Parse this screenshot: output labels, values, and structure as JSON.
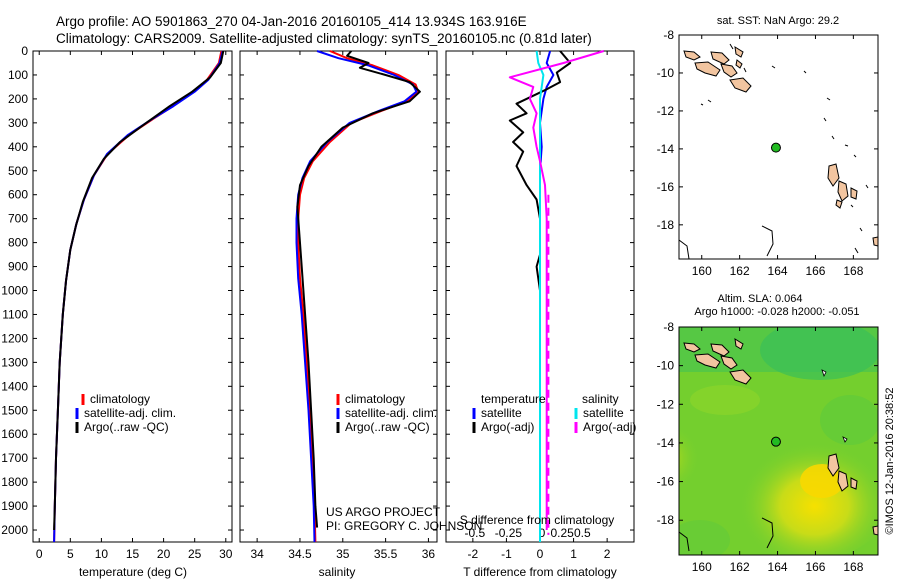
{
  "header": {
    "line1": "Argo profile: AO 5901863_270 04-Jan-2016 20160105_414 13.934S 163.916E",
    "line2": "Climatology: CARS2009. Satellite-adjusted climatology: synTS_20160105.nc (0.81d later)"
  },
  "colors": {
    "climatology": "#ff0000",
    "satellite": "#0000ff",
    "argo": "#000000",
    "sal_satellite": "#00e5ee",
    "sal_argo": "#ff00ff",
    "land": "#f2c5a0",
    "marker": "#22bb22"
  },
  "credit": "©IMOS 12-Jan-2016 20:38:52",
  "project_note": {
    "line1": "US ARGO PROJECT",
    "line2": "PI: GREGORY C. JOHNSON"
  },
  "chart_data": [
    {
      "id": "temp",
      "type": "line",
      "xlabel": "temperature (deg C)",
      "xlim": [
        -1,
        31
      ],
      "xticks": [
        0,
        5,
        10,
        15,
        20,
        25,
        30
      ],
      "ylim": [
        2050,
        0
      ],
      "yticks": [
        0,
        100,
        200,
        300,
        400,
        500,
        600,
        700,
        800,
        900,
        1000,
        1100,
        1200,
        1300,
        1400,
        1500,
        1600,
        1700,
        1800,
        1900,
        2000
      ],
      "legend": [
        "climatology",
        "satellite-adj. clim.",
        "Argo(..raw -QC)"
      ],
      "series": [
        {
          "name": "climatology",
          "color": "#ff0000",
          "points": [
            [
              29.3,
              0
            ],
            [
              28.9,
              50
            ],
            [
              27.0,
              120
            ],
            [
              24.8,
              170
            ],
            [
              21.5,
              230
            ],
            [
              18.5,
              280
            ],
            [
              14.5,
              350
            ],
            [
              11.0,
              430
            ],
            [
              8.8,
              520
            ],
            [
              7.2,
              620
            ],
            [
              6.0,
              720
            ],
            [
              5.0,
              830
            ],
            [
              4.3,
              960
            ],
            [
              3.8,
              1100
            ],
            [
              3.3,
              1300
            ],
            [
              3.0,
              1500
            ],
            [
              2.7,
              1700
            ],
            [
              2.5,
              1900
            ],
            [
              2.4,
              2050
            ]
          ]
        },
        {
          "name": "satellite-adj. clim.",
          "color": "#0000ff",
          "points": [
            [
              29.5,
              0
            ],
            [
              29.0,
              50
            ],
            [
              27.2,
              120
            ],
            [
              25.0,
              170
            ],
            [
              21.6,
              230
            ],
            [
              18.4,
              280
            ],
            [
              14.3,
              350
            ],
            [
              10.9,
              430
            ],
            [
              8.8,
              520
            ],
            [
              7.2,
              620
            ],
            [
              6.0,
              720
            ],
            [
              5.0,
              830
            ],
            [
              4.3,
              960
            ],
            [
              3.8,
              1100
            ],
            [
              3.3,
              1300
            ],
            [
              3.0,
              1500
            ],
            [
              2.7,
              1700
            ],
            [
              2.5,
              1900
            ],
            [
              2.4,
              2050
            ]
          ]
        },
        {
          "name": "Argo(..raw -QC)",
          "color": "#000000",
          "points": [
            [
              29.6,
              0
            ],
            [
              29.2,
              50
            ],
            [
              27.5,
              110
            ],
            [
              24.6,
              170
            ],
            [
              21.0,
              230
            ],
            [
              17.2,
              300
            ],
            [
              13.0,
              380
            ],
            [
              10.4,
              450
            ],
            [
              8.5,
              530
            ],
            [
              7.0,
              630
            ],
            [
              5.9,
              730
            ],
            [
              5.0,
              830
            ],
            [
              4.3,
              960
            ],
            [
              3.8,
              1100
            ],
            [
              3.3,
              1300
            ],
            [
              3.0,
              1500
            ],
            [
              2.7,
              1700
            ],
            [
              2.5,
              1900
            ],
            [
              2.4,
              2000
            ]
          ]
        }
      ]
    },
    {
      "id": "sal",
      "type": "line",
      "xlabel": "salinity",
      "xlim": [
        33.8,
        36.1
      ],
      "xticks": [
        34,
        34.5,
        35,
        35.5,
        36
      ],
      "xtick_labels": [
        "34",
        "34.5",
        "35",
        "35.5",
        "36"
      ],
      "ylim": [
        2050,
        0
      ],
      "legend": [
        "climatology",
        "satellite-adj. clim.",
        "Argo(..raw -QC)"
      ],
      "series": [
        {
          "name": "climatology",
          "color": "#ff0000",
          "points": [
            [
              34.85,
              0
            ],
            [
              35.05,
              30
            ],
            [
              35.35,
              60
            ],
            [
              35.65,
              100
            ],
            [
              35.85,
              140
            ],
            [
              35.88,
              170
            ],
            [
              35.75,
              210
            ],
            [
              35.45,
              250
            ],
            [
              35.1,
              300
            ],
            [
              34.85,
              380
            ],
            [
              34.65,
              460
            ],
            [
              34.55,
              530
            ],
            [
              34.5,
              600
            ],
            [
              34.48,
              700
            ],
            [
              34.48,
              800
            ],
            [
              34.5,
              950
            ],
            [
              34.54,
              1100
            ],
            [
              34.58,
              1300
            ],
            [
              34.62,
              1500
            ],
            [
              34.65,
              1700
            ],
            [
              34.67,
              1900
            ],
            [
              34.68,
              2050
            ]
          ]
        },
        {
          "name": "satellite-adj. clim.",
          "color": "#0000ff",
          "points": [
            [
              34.7,
              0
            ],
            [
              34.95,
              30
            ],
            [
              35.3,
              60
            ],
            [
              35.6,
              100
            ],
            [
              35.82,
              140
            ],
            [
              35.86,
              170
            ],
            [
              35.72,
              210
            ],
            [
              35.42,
              250
            ],
            [
              35.08,
              300
            ],
            [
              34.82,
              380
            ],
            [
              34.62,
              460
            ],
            [
              34.53,
              530
            ],
            [
              34.48,
              600
            ],
            [
              34.46,
              700
            ],
            [
              34.46,
              800
            ],
            [
              34.48,
              950
            ],
            [
              34.52,
              1100
            ],
            [
              34.56,
              1300
            ],
            [
              34.6,
              1500
            ],
            [
              34.63,
              1700
            ],
            [
              34.66,
              1900
            ],
            [
              34.67,
              2050
            ]
          ]
        },
        {
          "name": "Argo(..raw -QC)",
          "color": "#000000",
          "points": [
            [
              35.1,
              0
            ],
            [
              35.05,
              20
            ],
            [
              35.3,
              50
            ],
            [
              35.2,
              70
            ],
            [
              35.5,
              100
            ],
            [
              35.78,
              130
            ],
            [
              35.9,
              170
            ],
            [
              35.78,
              210
            ],
            [
              35.35,
              260
            ],
            [
              35.0,
              320
            ],
            [
              34.75,
              400
            ],
            [
              34.6,
              480
            ],
            [
              34.5,
              560
            ],
            [
              34.47,
              650
            ],
            [
              34.49,
              750
            ],
            [
              34.52,
              900
            ],
            [
              34.56,
              1100
            ],
            [
              34.6,
              1300
            ],
            [
              34.63,
              1500
            ],
            [
              34.66,
              1700
            ],
            [
              34.68,
              1900
            ],
            [
              34.7,
              1990
            ]
          ]
        }
      ]
    },
    {
      "id": "diff",
      "type": "line",
      "xlabel": "T difference from climatology",
      "xlabel_top": "S difference from climatology",
      "xlim": [
        -2.8,
        2.8
      ],
      "xticks": [
        -2,
        -1,
        0,
        1,
        2
      ],
      "xticks_top": [
        "-0.5",
        "-0.25",
        "0",
        "0.25",
        "0.5"
      ],
      "ylim": [
        2050,
        0
      ],
      "legend_temperature": {
        "title": "temperature",
        "items": [
          "satellite",
          "Argo(-adj)"
        ]
      },
      "legend_salinity": {
        "title": "salinity",
        "items": [
          "satellite",
          "Argo(-adj)"
        ]
      },
      "series": [
        {
          "name": "temperature satellite",
          "color": "#0000ff",
          "points": [
            [
              0.3,
              0
            ],
            [
              0.2,
              50
            ],
            [
              0.4,
              100
            ],
            [
              0.2,
              150
            ],
            [
              0.1,
              200
            ],
            [
              0.0,
              300
            ],
            [
              0.05,
              400
            ],
            [
              0.0,
              500
            ],
            [
              0.0,
              600
            ],
            [
              0.0,
              700
            ],
            [
              0.0,
              1000
            ],
            [
              0.0,
              1500
            ],
            [
              0.0,
              2050
            ]
          ]
        },
        {
          "name": "temperature Argo(-adj)",
          "color": "#000000",
          "points": [
            [
              0.6,
              0
            ],
            [
              0.9,
              50
            ],
            [
              0.5,
              90
            ],
            [
              0.6,
              130
            ],
            [
              0.2,
              160
            ],
            [
              -0.7,
              220
            ],
            [
              -0.4,
              260
            ],
            [
              -0.9,
              290
            ],
            [
              -0.5,
              340
            ],
            [
              -0.8,
              380
            ],
            [
              -0.5,
              420
            ],
            [
              -0.7,
              480
            ],
            [
              -0.4,
              560
            ],
            [
              -0.1,
              620
            ],
            [
              0.0,
              700
            ],
            [
              0.0,
              850
            ],
            [
              -0.1,
              900
            ],
            [
              0.0,
              1000
            ],
            [
              0.0,
              1500
            ],
            [
              0.0,
              2000
            ]
          ]
        },
        {
          "name": "salinity satellite",
          "color": "#00e5ee",
          "points": [
            [
              -0.1,
              0
            ],
            [
              -0.05,
              50
            ],
            [
              0.1,
              100
            ],
            [
              0.0,
              200
            ],
            [
              0.0,
              400
            ],
            [
              0.0,
              700
            ],
            [
              0.0,
              1000
            ],
            [
              0.0,
              1500
            ],
            [
              0.0,
              2050
            ]
          ]
        },
        {
          "name": "salinity Argo(-adj)",
          "color": "#ff00ff",
          "points": [
            [
              1.9,
              0
            ],
            [
              0.7,
              50
            ],
            [
              -0.9,
              110
            ],
            [
              -0.2,
              150
            ],
            [
              -0.3,
              200
            ],
            [
              -0.1,
              260
            ],
            [
              -0.2,
              320
            ],
            [
              -0.1,
              400
            ],
            [
              0.0,
              460
            ],
            [
              0.15,
              560
            ],
            [
              0.2,
              700
            ],
            [
              0.2,
              1000
            ],
            [
              0.2,
              1500
            ],
            [
              0.2,
              2000
            ]
          ]
        }
      ]
    },
    {
      "id": "map_sst",
      "type": "map",
      "title": "sat. SST: NaN Argo: 29.2",
      "xlim": [
        158.8,
        169.3
      ],
      "ylim": [
        -19.8,
        -8
      ],
      "xticks": [
        160,
        162,
        164,
        166,
        168
      ],
      "yticks": [
        -8,
        -10,
        -12,
        -14,
        -16,
        -18
      ],
      "marker": [
        163.916,
        -13.934
      ]
    },
    {
      "id": "map_sla",
      "type": "map",
      "title": "Altim. SLA: 0.064",
      "subtitle": "Argo h1000: -0.028 h2000: -0.051",
      "xlim": [
        158.8,
        169.3
      ],
      "ylim": [
        -19.8,
        -8
      ],
      "xticks": [
        160,
        162,
        164,
        166,
        168
      ],
      "yticks": [
        -8,
        -10,
        -12,
        -14,
        -16,
        -18
      ],
      "marker": [
        163.916,
        -13.934
      ]
    }
  ]
}
